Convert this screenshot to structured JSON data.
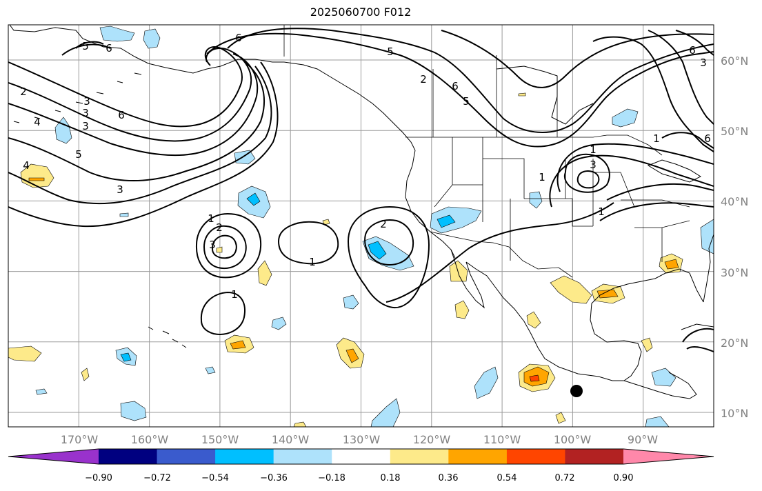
{
  "title": "2025060700 F012",
  "map": {
    "lon_range": [
      -180,
      -80
    ],
    "lat_range": [
      8,
      65
    ],
    "lon_ticks": [
      "170°W",
      "160°W",
      "150°W",
      "140°W",
      "130°W",
      "120°W",
      "110°W",
      "100°W",
      "90°W"
    ],
    "lat_ticks": [
      "60°N",
      "50°N",
      "40°N",
      "30°N",
      "20°N",
      "10°N"
    ],
    "grid": true,
    "contour_labels": [
      "5",
      "6",
      "2",
      "6",
      "3",
      "4",
      "3",
      "5",
      "6",
      "3",
      "5",
      "4",
      "6",
      "5",
      "6",
      "3",
      "1",
      "2",
      "3",
      "1",
      "2",
      "1",
      "3",
      "1",
      "1",
      "2",
      "3",
      "1",
      "1",
      "6"
    ]
  },
  "colorbar": {
    "tick_labels": [
      "−0.90",
      "−0.72",
      "−0.54",
      "−0.36",
      "−0.18",
      "0.18",
      "0.36",
      "0.54",
      "0.72",
      "0.90"
    ],
    "colors": {
      "under": "#9932cc",
      "bins": [
        "#000080",
        "#3a5bcd",
        "#00bfff",
        "#aee2fb",
        "#ffffff",
        "#fdea8a",
        "#ffa500",
        "#ff4500",
        "#b22222"
      ],
      "over": "#ff88aa"
    }
  },
  "colors": {
    "ocean": "#ffffff",
    "coast": "#000000",
    "grid": "#9a9a9a",
    "light_blue": "#aee2fb",
    "cyan": "#00bfff",
    "yellow": "#fdea8a",
    "orange": "#ffa500",
    "red_orange": "#ff4500",
    "marker": "#000000"
  }
}
